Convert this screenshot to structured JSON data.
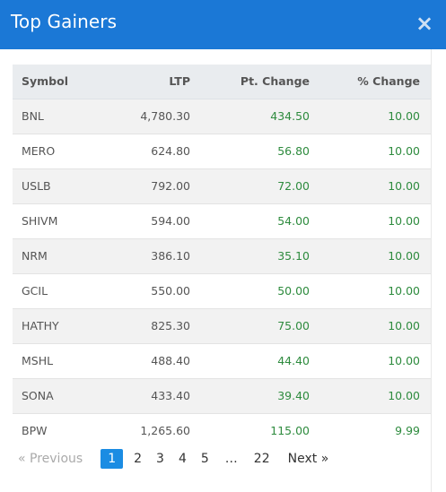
{
  "modal": {
    "title": "Top Gainers",
    "close_glyph": "×"
  },
  "table": {
    "columns": [
      "Symbol",
      "LTP",
      "Pt. Change",
      "% Change"
    ],
    "rows": [
      {
        "symbol": "BNL",
        "ltp": "4,780.30",
        "pt_change": "434.50",
        "pct_change": "10.00"
      },
      {
        "symbol": "MERO",
        "ltp": "624.80",
        "pt_change": "56.80",
        "pct_change": "10.00"
      },
      {
        "symbol": "USLB",
        "ltp": "792.00",
        "pt_change": "72.00",
        "pct_change": "10.00"
      },
      {
        "symbol": "SHIVM",
        "ltp": "594.00",
        "pt_change": "54.00",
        "pct_change": "10.00"
      },
      {
        "symbol": "NRM",
        "ltp": "386.10",
        "pt_change": "35.10",
        "pct_change": "10.00"
      },
      {
        "symbol": "GCIL",
        "ltp": "550.00",
        "pt_change": "50.00",
        "pct_change": "10.00"
      },
      {
        "symbol": "HATHY",
        "ltp": "825.30",
        "pt_change": "75.00",
        "pct_change": "10.00"
      },
      {
        "symbol": "MSHL",
        "ltp": "488.40",
        "pt_change": "44.40",
        "pct_change": "10.00"
      },
      {
        "symbol": "SONA",
        "ltp": "433.40",
        "pt_change": "39.40",
        "pct_change": "10.00"
      },
      {
        "symbol": "BPW",
        "ltp": "1,265.60",
        "pt_change": "115.00",
        "pct_change": "9.99"
      }
    ]
  },
  "pagination": {
    "previous_label": "«  Previous",
    "next_label": "Next  »",
    "pages": [
      "1",
      "2",
      "3",
      "4",
      "5",
      "…",
      "22"
    ],
    "current_page": "1"
  },
  "colors": {
    "header_bg": "#1b78d6",
    "positive": "#2e8b3e",
    "active_page": "#1b8ce3"
  }
}
